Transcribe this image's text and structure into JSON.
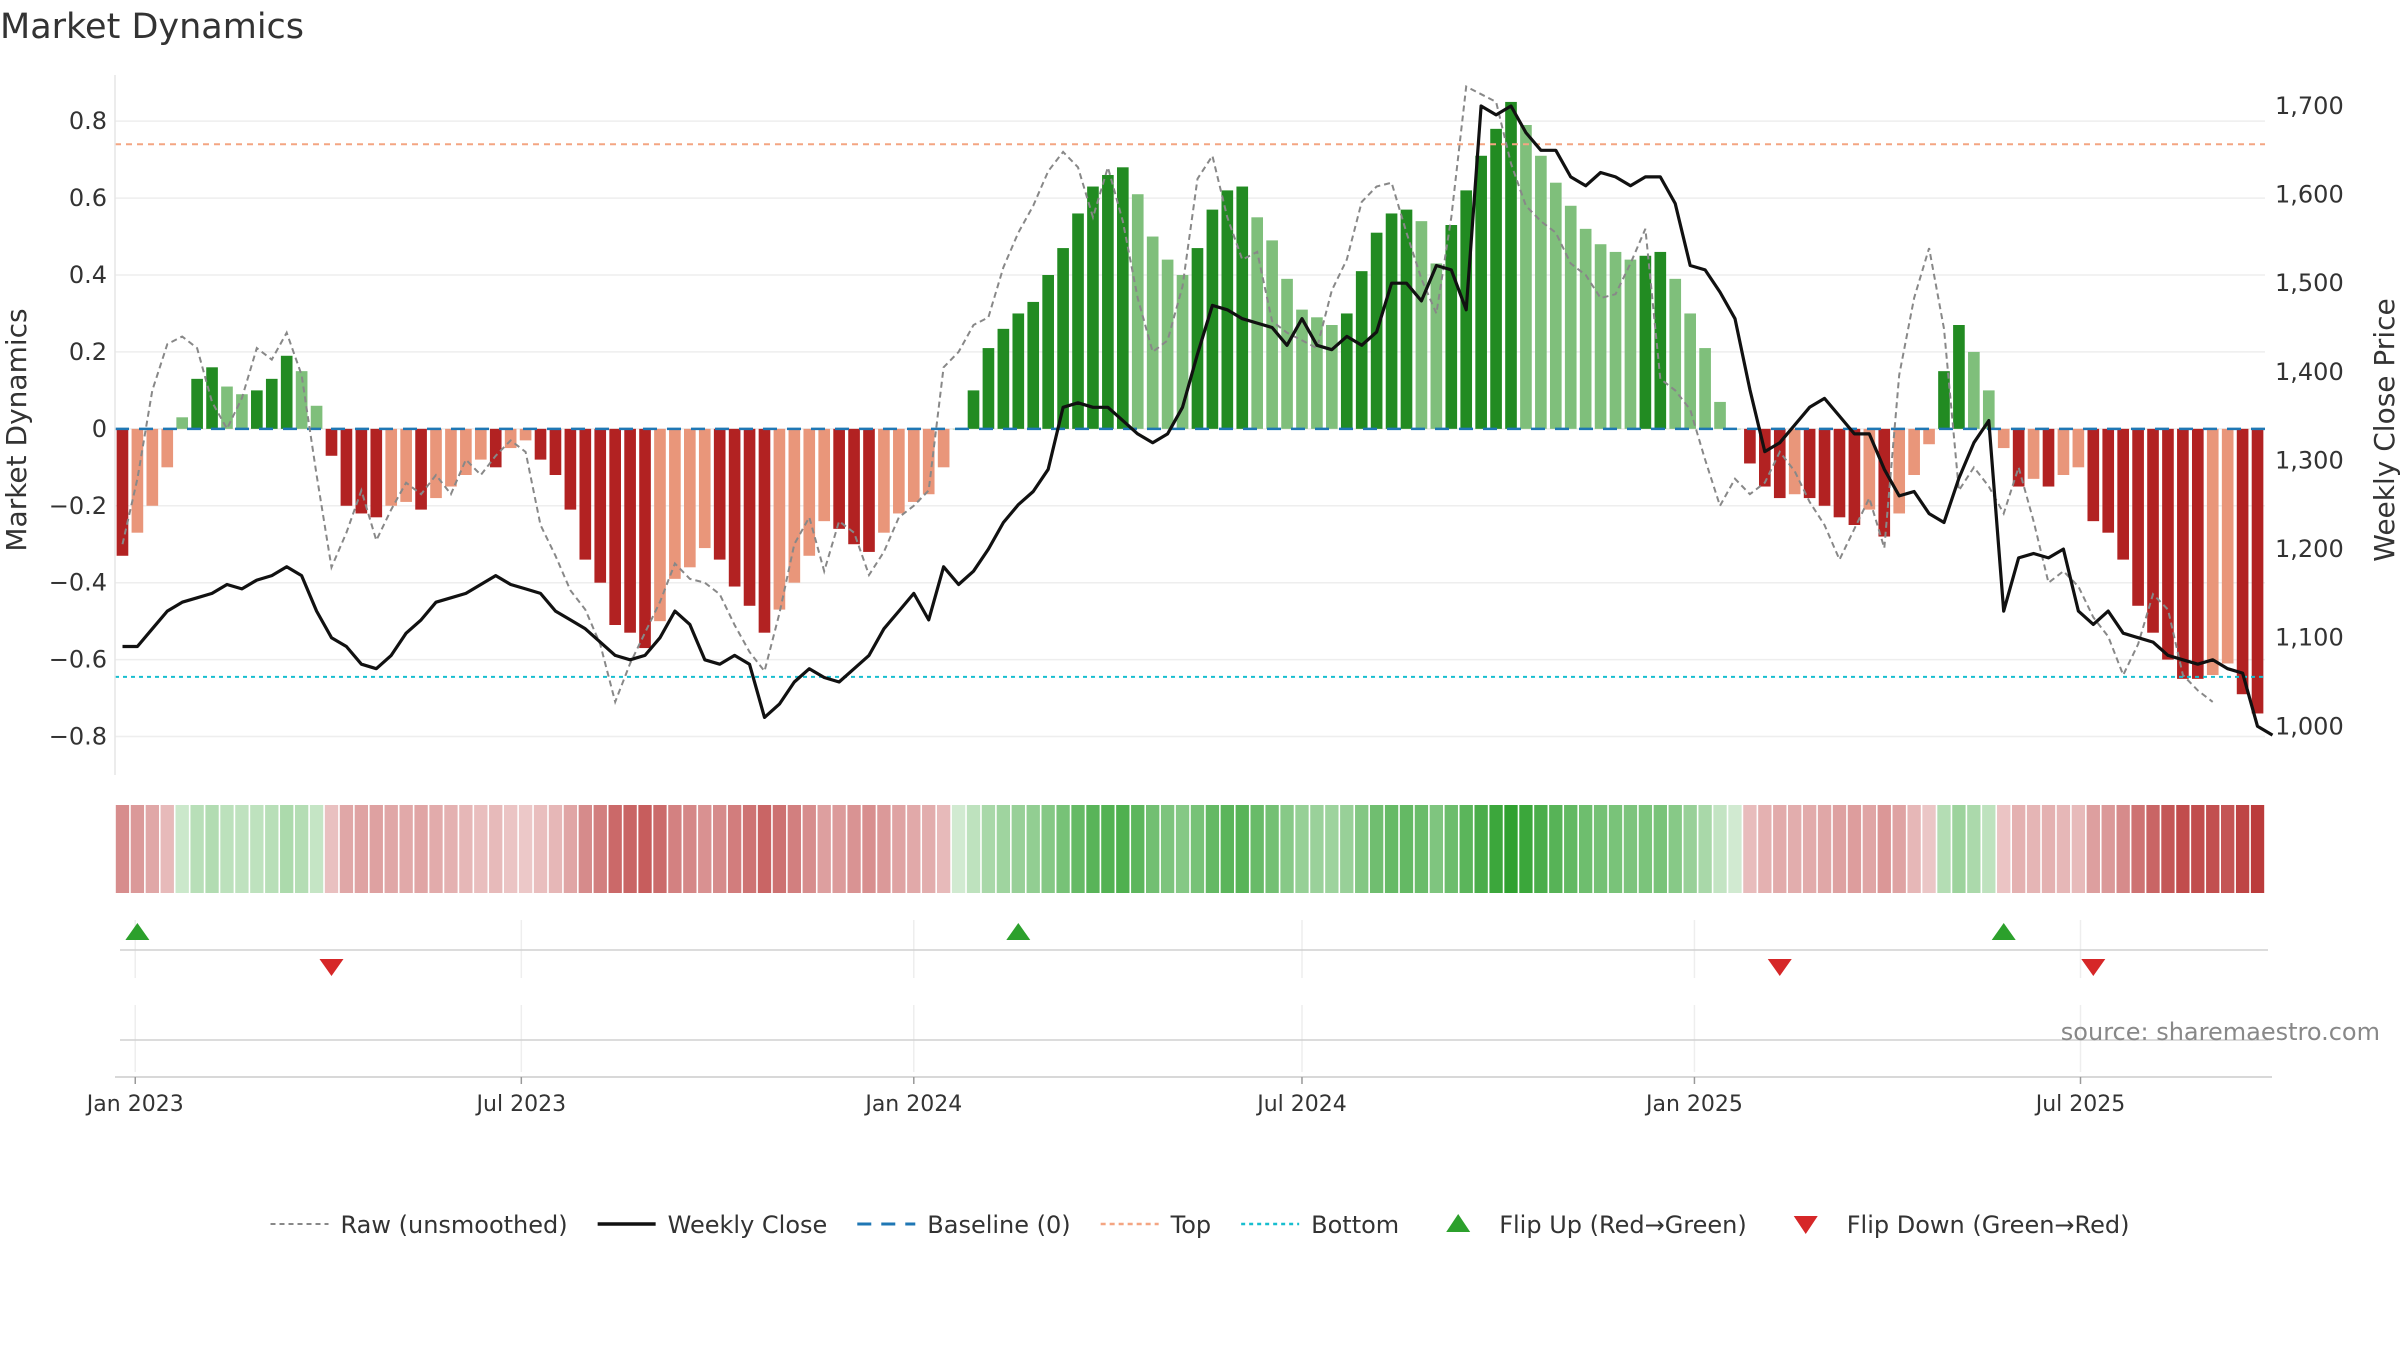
{
  "chart_data": {
    "type": "bar",
    "title": "Market Dynamics",
    "ylabel_left": "Market Dynamics",
    "ylabel_right": "Weekly Close Price",
    "ylim_left": [
      -0.9,
      0.92
    ],
    "ylim_right": [
      945,
      1735
    ],
    "yticks_left": [
      "0.8",
      "0.6",
      "0.4",
      "0.2",
      "0",
      "−0.2",
      "−0.4",
      "−0.6",
      "−0.8"
    ],
    "yticks_left_values": [
      0.8,
      0.6,
      0.4,
      0.2,
      0,
      -0.2,
      -0.4,
      -0.6,
      -0.8
    ],
    "yticks_right": [
      "1,700",
      "1,600",
      "1,500",
      "1,400",
      "1,300",
      "1,200",
      "1,100",
      "1,000"
    ],
    "yticks_right_values": [
      1700,
      1600,
      1500,
      1400,
      1300,
      1200,
      1100,
      1000
    ],
    "x_start": "2022-12-26",
    "xticks": [
      "Jan 2023",
      "Jul 2023",
      "Jan 2024",
      "Jul 2024",
      "Jan 2025",
      "Jul 2025"
    ],
    "xtick_dates": [
      "2023-01-01",
      "2023-07-01",
      "2024-01-01",
      "2024-07-01",
      "2025-01-01",
      "2025-07-01"
    ],
    "top_level": 0.74,
    "bottom_level": -0.645,
    "baseline": 0,
    "values": [
      -0.33,
      -0.27,
      -0.2,
      -0.1,
      0.03,
      0.13,
      0.16,
      0.11,
      0.09,
      0.1,
      0.13,
      0.19,
      0.15,
      0.06,
      -0.07,
      -0.2,
      -0.22,
      -0.23,
      -0.2,
      -0.19,
      -0.21,
      -0.18,
      -0.15,
      -0.12,
      -0.08,
      -0.1,
      -0.05,
      -0.03,
      -0.08,
      -0.12,
      -0.21,
      -0.34,
      -0.4,
      -0.51,
      -0.53,
      -0.57,
      -0.5,
      -0.39,
      -0.36,
      -0.31,
      -0.34,
      -0.41,
      -0.46,
      -0.53,
      -0.47,
      -0.4,
      -0.33,
      -0.24,
      -0.26,
      -0.3,
      -0.32,
      -0.27,
      -0.22,
      -0.19,
      -0.17,
      -0.1,
      0.0,
      0.1,
      0.21,
      0.26,
      0.3,
      0.33,
      0.4,
      0.47,
      0.56,
      0.63,
      0.66,
      0.68,
      0.61,
      0.5,
      0.44,
      0.4,
      0.47,
      0.57,
      0.62,
      0.63,
      0.55,
      0.49,
      0.39,
      0.31,
      0.29,
      0.27,
      0.3,
      0.41,
      0.51,
      0.56,
      0.57,
      0.54,
      0.43,
      0.53,
      0.62,
      0.71,
      0.78,
      0.85,
      0.79,
      0.71,
      0.64,
      0.58,
      0.52,
      0.48,
      0.46,
      0.44,
      0.45,
      0.46,
      0.39,
      0.3,
      0.21,
      0.07,
      0.0,
      -0.09,
      -0.15,
      -0.18,
      -0.17,
      -0.18,
      -0.2,
      -0.23,
      -0.25,
      -0.21,
      -0.28,
      -0.22,
      -0.12,
      -0.04,
      0.15,
      0.27,
      0.2,
      0.1,
      -0.05,
      -0.15,
      -0.13,
      -0.15,
      -0.12,
      -0.1,
      -0.24,
      -0.27,
      -0.34,
      -0.46,
      -0.53,
      -0.6,
      -0.65,
      -0.65,
      -0.64,
      -0.61,
      -0.69,
      -0.74
    ],
    "series": [
      {
        "name": "Raw (unsmoothed)",
        "values": [
          -0.3,
          -0.13,
          0.1,
          0.22,
          0.24,
          0.21,
          0.07,
          0.0,
          0.08,
          0.21,
          0.18,
          0.25,
          0.14,
          -0.12,
          -0.36,
          -0.27,
          -0.16,
          -0.29,
          -0.21,
          -0.14,
          -0.17,
          -0.12,
          -0.17,
          -0.08,
          -0.12,
          -0.07,
          -0.03,
          -0.06,
          -0.25,
          -0.33,
          -0.42,
          -0.47,
          -0.56,
          -0.71,
          -0.61,
          -0.53,
          -0.45,
          -0.35,
          -0.39,
          -0.4,
          -0.43,
          -0.51,
          -0.58,
          -0.63,
          -0.48,
          -0.3,
          -0.23,
          -0.37,
          -0.24,
          -0.27,
          -0.38,
          -0.32,
          -0.23,
          -0.2,
          -0.16,
          0.16,
          0.2,
          0.27,
          0.29,
          0.42,
          0.51,
          0.58,
          0.67,
          0.72,
          0.68,
          0.55,
          0.68,
          0.54,
          0.34,
          0.2,
          0.23,
          0.37,
          0.65,
          0.71,
          0.55,
          0.44,
          0.46,
          0.28,
          0.25,
          0.23,
          0.21,
          0.36,
          0.44,
          0.59,
          0.63,
          0.64,
          0.51,
          0.39,
          0.3,
          0.55,
          0.89,
          0.87,
          0.85,
          0.69,
          0.58,
          0.54,
          0.51,
          0.43,
          0.4,
          0.34,
          0.35,
          0.43,
          0.52,
          0.13,
          0.1,
          0.05,
          -0.08,
          -0.2,
          -0.13,
          -0.17,
          -0.14,
          -0.06,
          -0.11,
          -0.19,
          -0.25,
          -0.34,
          -0.26,
          -0.18,
          -0.31,
          0.14,
          0.34,
          0.47,
          0.26,
          -0.16,
          -0.1,
          -0.15,
          -0.22,
          -0.1,
          -0.24,
          -0.4,
          -0.37,
          -0.41,
          -0.49,
          -0.54,
          -0.64,
          -0.56,
          -0.43,
          -0.47,
          -0.64,
          -0.68,
          -0.71
        ]
      },
      {
        "name": "Weekly Close",
        "values": [
          1090,
          1090,
          1110,
          1130,
          1140,
          1145,
          1150,
          1160,
          1155,
          1165,
          1170,
          1180,
          1170,
          1130,
          1100,
          1090,
          1070,
          1065,
          1080,
          1105,
          1120,
          1140,
          1145,
          1150,
          1160,
          1170,
          1160,
          1155,
          1150,
          1130,
          1120,
          1110,
          1095,
          1080,
          1075,
          1080,
          1100,
          1130,
          1115,
          1075,
          1070,
          1080,
          1070,
          1010,
          1025,
          1050,
          1065,
          1055,
          1050,
          1065,
          1080,
          1110,
          1130,
          1150,
          1120,
          1180,
          1160,
          1175,
          1200,
          1230,
          1250,
          1265,
          1290,
          1360,
          1365,
          1360,
          1360,
          1345,
          1330,
          1320,
          1330,
          1360,
          1420,
          1475,
          1470,
          1460,
          1455,
          1450,
          1430,
          1460,
          1430,
          1425,
          1440,
          1430,
          1445,
          1500,
          1500,
          1480,
          1520,
          1515,
          1470,
          1700,
          1690,
          1700,
          1670,
          1650,
          1650,
          1620,
          1610,
          1625,
          1620,
          1610,
          1620,
          1620,
          1590,
          1520,
          1515,
          1490,
          1460,
          1380,
          1310,
          1320,
          1340,
          1360,
          1370,
          1350,
          1330,
          1330,
          1290,
          1260,
          1265,
          1240,
          1230,
          1280,
          1320,
          1345,
          1130,
          1190,
          1195,
          1190,
          1200,
          1130,
          1115,
          1130,
          1105,
          1100,
          1095,
          1080,
          1075,
          1070,
          1075,
          1065,
          1060,
          1000,
          990
        ]
      },
      {
        "name": "Baseline (0)",
        "values": [
          0
        ]
      },
      {
        "name": "Top",
        "values": [
          0.74
        ]
      },
      {
        "name": "Bottom",
        "values": [
          -0.645
        ]
      }
    ],
    "flip_up_weeks": [
      1,
      60,
      126
    ],
    "flip_down_weeks": [
      14,
      111,
      132
    ],
    "colors": {
      "bar_pos_strong": "#228b22",
      "bar_pos_weak": "#7fbf7b",
      "bar_neg_strong": "#b22222",
      "bar_neg_weak": "#e9967a",
      "weekly_close": "#111111",
      "raw": "#888888",
      "baseline": "#1f77b4",
      "top": "#f4a582",
      "bottom": "#17becf",
      "flip_up": "#2ca02c",
      "flip_down": "#d62728",
      "grid": "#eeeeee"
    },
    "legend": [
      "Raw (unsmoothed)",
      "Weekly Close",
      "Baseline (0)",
      "Top",
      "Bottom",
      "Flip Up (Red→Green)",
      "Flip Down (Green→Red)"
    ],
    "legend_placement": "bottom-center",
    "grid": true
  },
  "source_text": "source: sharemaestro.com"
}
